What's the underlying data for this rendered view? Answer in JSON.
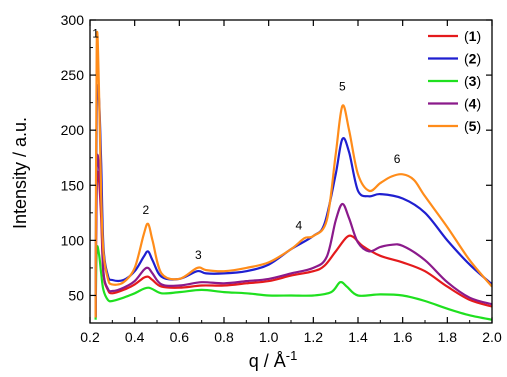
{
  "chart_data": {
    "type": "line",
    "xlabel_base": "q / Å",
    "xlabel_sup": "-1",
    "ylabel": "Intensity / a.u.",
    "xlim": [
      0.2,
      2.0
    ],
    "ylim": [
      25,
      300
    ],
    "x_ticks": [
      0.2,
      0.4,
      0.6,
      0.8,
      1.0,
      1.2,
      1.4,
      1.6,
      1.8,
      2.0
    ],
    "x_tick_labels": [
      "0.2",
      "0.4",
      "0.6",
      "0.8",
      "1.0",
      "1.2",
      "1.4",
      "1.6",
      "1.8",
      "2.0"
    ],
    "y_ticks": [
      50,
      100,
      150,
      200,
      250,
      300
    ],
    "y_tick_labels": [
      "50",
      "100",
      "150",
      "200",
      "250",
      "300"
    ],
    "grid": false,
    "legend_position": "top-right",
    "series": [
      {
        "name": "1",
        "color": "#e41a1c",
        "points": [
          [
            0.225,
            30
          ],
          [
            0.23,
            150
          ],
          [
            0.24,
            155
          ],
          [
            0.25,
            120
          ],
          [
            0.26,
            70
          ],
          [
            0.28,
            55
          ],
          [
            0.3,
            52
          ],
          [
            0.35,
            55
          ],
          [
            0.4,
            60
          ],
          [
            0.44,
            66
          ],
          [
            0.46,
            67
          ],
          [
            0.48,
            64
          ],
          [
            0.52,
            58
          ],
          [
            0.6,
            57
          ],
          [
            0.7,
            59
          ],
          [
            0.8,
            59
          ],
          [
            0.9,
            61
          ],
          [
            1.0,
            63
          ],
          [
            1.1,
            68
          ],
          [
            1.2,
            72
          ],
          [
            1.25,
            77
          ],
          [
            1.3,
            90
          ],
          [
            1.35,
            103
          ],
          [
            1.38,
            103
          ],
          [
            1.42,
            95
          ],
          [
            1.5,
            86
          ],
          [
            1.6,
            80
          ],
          [
            1.7,
            72
          ],
          [
            1.8,
            58
          ],
          [
            1.9,
            46
          ],
          [
            2.0,
            40
          ]
        ]
      },
      {
        "name": "2",
        "color": "#1f1fd0",
        "points": [
          [
            0.225,
            30
          ],
          [
            0.23,
            220
          ],
          [
            0.24,
            230
          ],
          [
            0.25,
            170
          ],
          [
            0.26,
            95
          ],
          [
            0.28,
            68
          ],
          [
            0.3,
            64
          ],
          [
            0.35,
            64
          ],
          [
            0.4,
            72
          ],
          [
            0.44,
            85
          ],
          [
            0.46,
            90
          ],
          [
            0.48,
            82
          ],
          [
            0.52,
            67
          ],
          [
            0.6,
            65
          ],
          [
            0.68,
            72
          ],
          [
            0.72,
            70
          ],
          [
            0.8,
            70
          ],
          [
            0.9,
            72
          ],
          [
            1.0,
            78
          ],
          [
            1.1,
            92
          ],
          [
            1.2,
            104
          ],
          [
            1.25,
            115
          ],
          [
            1.3,
            160
          ],
          [
            1.33,
            192
          ],
          [
            1.36,
            180
          ],
          [
            1.4,
            145
          ],
          [
            1.45,
            140
          ],
          [
            1.5,
            142
          ],
          [
            1.6,
            138
          ],
          [
            1.7,
            125
          ],
          [
            1.8,
            100
          ],
          [
            1.9,
            78
          ],
          [
            2.0,
            60
          ]
        ]
      },
      {
        "name": "3",
        "color": "#1fe01f",
        "points": [
          [
            0.225,
            28
          ],
          [
            0.23,
            90
          ],
          [
            0.24,
            88
          ],
          [
            0.25,
            70
          ],
          [
            0.26,
            55
          ],
          [
            0.28,
            46
          ],
          [
            0.3,
            45
          ],
          [
            0.35,
            48
          ],
          [
            0.4,
            52
          ],
          [
            0.46,
            57
          ],
          [
            0.52,
            52
          ],
          [
            0.6,
            53
          ],
          [
            0.7,
            55
          ],
          [
            0.8,
            53
          ],
          [
            0.9,
            52
          ],
          [
            1.0,
            50
          ],
          [
            1.1,
            50
          ],
          [
            1.2,
            50
          ],
          [
            1.28,
            53
          ],
          [
            1.32,
            62
          ],
          [
            1.35,
            58
          ],
          [
            1.4,
            50
          ],
          [
            1.5,
            51
          ],
          [
            1.6,
            50
          ],
          [
            1.7,
            45
          ],
          [
            1.8,
            38
          ],
          [
            1.9,
            32
          ],
          [
            2.0,
            28
          ]
        ]
      },
      {
        "name": "4",
        "color": "#8b1a8b",
        "points": [
          [
            0.225,
            30
          ],
          [
            0.23,
            165
          ],
          [
            0.24,
            168
          ],
          [
            0.25,
            130
          ],
          [
            0.26,
            72
          ],
          [
            0.28,
            56
          ],
          [
            0.3,
            54
          ],
          [
            0.35,
            57
          ],
          [
            0.4,
            63
          ],
          [
            0.44,
            73
          ],
          [
            0.46,
            75
          ],
          [
            0.48,
            70
          ],
          [
            0.52,
            60
          ],
          [
            0.6,
            59
          ],
          [
            0.7,
            62
          ],
          [
            0.8,
            61
          ],
          [
            0.9,
            63
          ],
          [
            1.0,
            65
          ],
          [
            1.1,
            70
          ],
          [
            1.2,
            75
          ],
          [
            1.26,
            85
          ],
          [
            1.3,
            118
          ],
          [
            1.33,
            133
          ],
          [
            1.36,
            120
          ],
          [
            1.4,
            98
          ],
          [
            1.45,
            90
          ],
          [
            1.5,
            94
          ],
          [
            1.55,
            96
          ],
          [
            1.6,
            95
          ],
          [
            1.7,
            82
          ],
          [
            1.8,
            62
          ],
          [
            1.9,
            48
          ],
          [
            2.0,
            42
          ]
        ]
      },
      {
        "name": "5",
        "color": "#ff8c1a",
        "points": [
          [
            0.225,
            30
          ],
          [
            0.23,
            277
          ],
          [
            0.24,
            240
          ],
          [
            0.25,
            140
          ],
          [
            0.26,
            90
          ],
          [
            0.28,
            65
          ],
          [
            0.3,
            60
          ],
          [
            0.35,
            62
          ],
          [
            0.4,
            75
          ],
          [
            0.44,
            105
          ],
          [
            0.46,
            115
          ],
          [
            0.48,
            100
          ],
          [
            0.52,
            70
          ],
          [
            0.6,
            65
          ],
          [
            0.68,
            75
          ],
          [
            0.72,
            73
          ],
          [
            0.8,
            72
          ],
          [
            0.9,
            75
          ],
          [
            1.0,
            80
          ],
          [
            1.1,
            92
          ],
          [
            1.16,
            102
          ],
          [
            1.2,
            104
          ],
          [
            1.26,
            118
          ],
          [
            1.3,
            178
          ],
          [
            1.33,
            222
          ],
          [
            1.36,
            200
          ],
          [
            1.4,
            160
          ],
          [
            1.45,
            145
          ],
          [
            1.5,
            152
          ],
          [
            1.55,
            158
          ],
          [
            1.6,
            160
          ],
          [
            1.65,
            155
          ],
          [
            1.7,
            140
          ],
          [
            1.8,
            112
          ],
          [
            1.9,
            82
          ],
          [
            2.0,
            58
          ]
        ]
      }
    ],
    "annotations": [
      {
        "text": "1",
        "x": 0.225,
        "y": 284
      },
      {
        "text": "2",
        "x": 0.45,
        "y": 124
      },
      {
        "text": "3",
        "x": 0.685,
        "y": 83
      },
      {
        "text": "4",
        "x": 1.135,
        "y": 110
      },
      {
        "text": "5",
        "x": 1.33,
        "y": 236
      },
      {
        "text": "6",
        "x": 1.575,
        "y": 170
      }
    ]
  }
}
